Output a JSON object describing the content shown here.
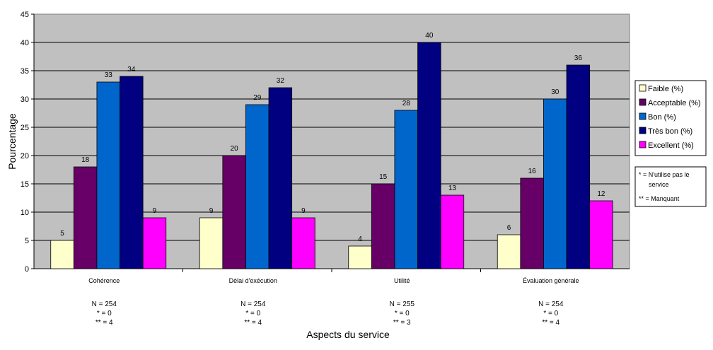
{
  "chart_data": {
    "type": "bar",
    "title": "",
    "xlabel": "Aspects du service",
    "ylabel": "Pourcentage",
    "ylim": [
      0,
      45
    ],
    "yticks": [
      0,
      5,
      10,
      15,
      20,
      25,
      30,
      35,
      40,
      45
    ],
    "grid": true,
    "legend_position": "right",
    "categories": [
      "Cohérence",
      "Délai d'exécution",
      "Utilité",
      "Évaluation générale"
    ],
    "series": [
      {
        "name": "Faible (%)",
        "color": "#FFFFCC",
        "values": [
          5,
          9,
          4,
          6
        ],
        "labels": [
          "5",
          "9",
          "4",
          "6"
        ]
      },
      {
        "name": "Acceptable (%)",
        "color": "#660066",
        "values": [
          18,
          20,
          15,
          16
        ],
        "labels": [
          "18",
          "20",
          "15",
          "16"
        ]
      },
      {
        "name": "Bon (%)",
        "color": "#0066CC",
        "values": [
          33,
          29,
          28,
          30
        ],
        "labels": [
          "33",
          "29",
          "28",
          "30"
        ]
      },
      {
        "name": "Très bon (%)",
        "color": "#000080",
        "values": [
          34,
          32,
          40,
          36
        ],
        "labels": [
          "34",
          "32",
          "40",
          "36"
        ]
      },
      {
        "name": "Excellent (%)",
        "color": "#FF00FF",
        "values": [
          9,
          9,
          13,
          12
        ],
        "labels": [
          "9",
          "9",
          "13",
          "12"
        ]
      }
    ],
    "category_notes": [
      [
        "N = 254",
        "* = 0",
        "** = 4"
      ],
      [
        "N = 254",
        "* = 0",
        "** = 4"
      ],
      [
        "N = 255",
        "* = 0",
        "** = 3"
      ],
      [
        "N = 254",
        "* = 0",
        "** = 4"
      ]
    ],
    "footnote": [
      "* = N'utilise pas le",
      "service",
      "** = Manquant"
    ]
  }
}
